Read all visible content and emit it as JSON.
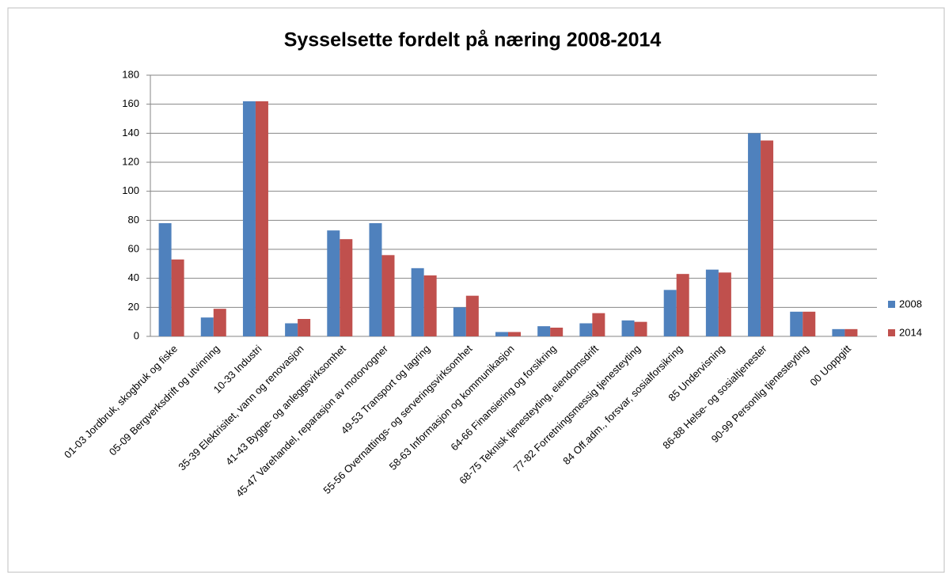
{
  "chart_data": {
    "type": "bar",
    "title": "Sysselsette fordelt på næring 2008-2014",
    "categories": [
      "01-03 Jordbruk, skogbruk og fiske",
      "05-09 Bergverksdrift og utvinning",
      "10-33 Industri",
      "35-39 Elektrisitet, vann og renovasjon",
      "41-43 Bygge- og anleggsvirksomhet",
      "45-47 Varehandel, reparasjon av motorvogner",
      "49-53 Transport og lagring",
      "55-56 Overnattings- og serveringsvirksomhet",
      "58-63 Informasjon og kommunikasjon",
      "64-66 Finansiering og forsikring",
      "68-75 Teknisk tjenesteyting, eiendomsdrift",
      "77-82 Forretningsmessig tjenesteyting",
      "84 Off.adm., forsvar, sosialforsikring",
      "85 Undervisning",
      "86-88 Helse- og sosialtjenester",
      "90-99 Personlig tjenesteyting",
      "00 Uoppgitt"
    ],
    "series": [
      {
        "name": "2008",
        "color": "#4f81bd",
        "values": [
          78,
          13,
          162,
          9,
          73,
          78,
          47,
          20,
          3,
          7,
          9,
          11,
          32,
          46,
          140,
          17,
          5
        ]
      },
      {
        "name": "2014",
        "color": "#c0504d",
        "values": [
          53,
          19,
          162,
          12,
          67,
          56,
          42,
          28,
          3,
          6,
          16,
          10,
          43,
          44,
          135,
          17,
          5
        ]
      }
    ],
    "ylim": [
      0,
      180
    ],
    "yticks": [
      0,
      20,
      40,
      60,
      80,
      100,
      120,
      140,
      160,
      180
    ],
    "grid": true,
    "legend": "right"
  }
}
